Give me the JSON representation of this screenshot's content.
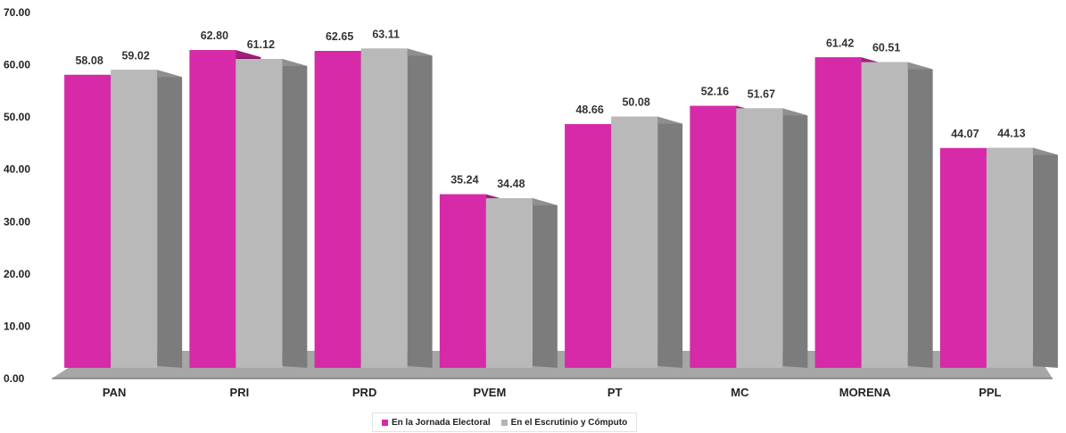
{
  "chart_data": {
    "type": "bar",
    "categories": [
      "PAN",
      "PRI",
      "PRD",
      "PVEM",
      "PT",
      "MC",
      "MORENA",
      "PPL"
    ],
    "series": [
      {
        "name": "En la Jornada Electoral",
        "values": [
          58.08,
          62.8,
          62.65,
          35.24,
          48.66,
          52.16,
          61.42,
          44.07
        ],
        "labels": [
          "58.08",
          "62.80",
          "62.65",
          "35.24",
          "48.66",
          "52.16",
          "61.42",
          "44.07"
        ],
        "color": "#d62aa8"
      },
      {
        "name": "En el Escrutinio y Cómputo",
        "values": [
          59.02,
          61.12,
          63.11,
          34.48,
          50.08,
          51.67,
          60.51,
          44.13
        ],
        "labels": [
          "59.02",
          "61.12",
          "63.11",
          "34.48",
          "50.08",
          "51.67",
          "60.51",
          "44.13"
        ],
        "color": "#b5b5b5"
      }
    ],
    "yticks": [
      "0.00",
      "10.00",
      "20.00",
      "30.00",
      "40.00",
      "50.00",
      "60.00",
      "70.00"
    ],
    "ylim": [
      0,
      70
    ],
    "legend_position": "bottom",
    "grid": false,
    "floor_color": "#a6a6a6"
  }
}
